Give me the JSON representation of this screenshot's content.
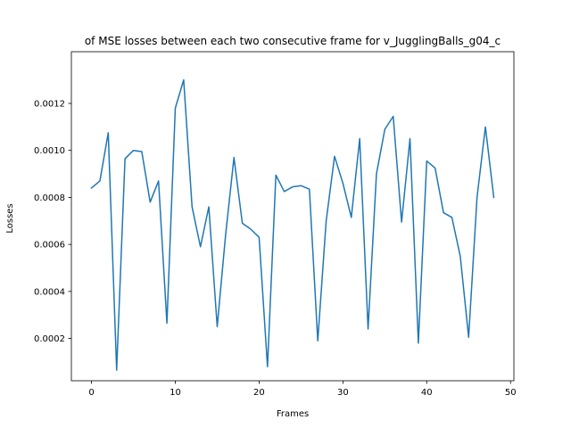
{
  "chart_data": {
    "type": "line",
    "title": "of MSE losses between each two consecutive frame for v_JugglingBalls_g04_c",
    "xlabel": "Frames",
    "ylabel": "Losses",
    "xlim": [
      -2.4,
      50.4
    ],
    "ylim": [
      2e-05,
      0.00142
    ],
    "xticks": [
      0,
      10,
      20,
      30,
      40,
      50
    ],
    "xtick_labels": [
      "0",
      "10",
      "20",
      "30",
      "40",
      "50"
    ],
    "yticks": [
      0.0002,
      0.0004,
      0.0006,
      0.0008,
      0.001,
      0.0012
    ],
    "ytick_labels": [
      "0.0002",
      "0.0004",
      "0.0006",
      "0.0008",
      "0.0010",
      "0.0012"
    ],
    "grid": false,
    "series": [
      {
        "color": "#1f77b4",
        "x": [
          0,
          1,
          2,
          3,
          4,
          5,
          6,
          7,
          8,
          9,
          10,
          11,
          12,
          13,
          14,
          15,
          16,
          17,
          18,
          19,
          20,
          21,
          22,
          23,
          24,
          25,
          26,
          27,
          28,
          29,
          30,
          31,
          32,
          33,
          34,
          35,
          36,
          37,
          38,
          39,
          40,
          41,
          42,
          43,
          44,
          45,
          46,
          47,
          48
        ],
        "values": [
          0.00084,
          0.00087,
          0.001075,
          6.5e-05,
          0.000965,
          0.001,
          0.000995,
          0.00078,
          0.00087,
          0.000265,
          0.00118,
          0.0013,
          0.00076,
          0.00059,
          0.00076,
          0.00025,
          0.00064,
          0.00097,
          0.00069,
          0.000665,
          0.00063,
          8e-05,
          0.000895,
          0.000825,
          0.000845,
          0.00085,
          0.000835,
          0.00019,
          0.0007,
          0.000975,
          0.00086,
          0.000715,
          0.00105,
          0.00024,
          0.0009,
          0.00109,
          0.001145,
          0.000695,
          0.00105,
          0.00018,
          0.000955,
          0.000925,
          0.000735,
          0.000715,
          0.00055,
          0.000205,
          0.0008,
          0.0011,
          0.0008
        ]
      }
    ]
  }
}
